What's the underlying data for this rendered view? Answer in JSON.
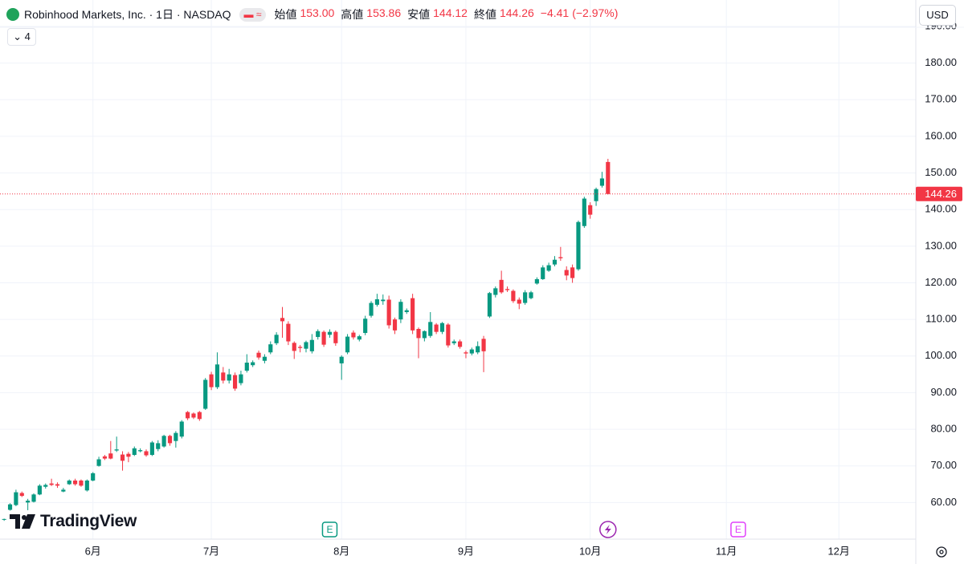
{
  "header": {
    "title": "Robinhood Markets, Inc. · 1日 · NASDAQ",
    "indicator_count": "4",
    "currency": "USD",
    "brand": "TradingView"
  },
  "chart_data": {
    "type": "candlestick",
    "up_color": "#089981",
    "down_color": "#f23645",
    "grid": true,
    "ohlc_legend": [
      {
        "name": "始値",
        "value": 153,
        "label": "153.00"
      },
      {
        "name": "高値",
        "value": 153.86,
        "label": "153.86"
      },
      {
        "name": "安値",
        "value": 144.12,
        "label": "144.12"
      },
      {
        "name": "終値",
        "value": 144.26,
        "label": "144.26"
      }
    ],
    "change": {
      "value": -4.41,
      "label": "−4.41"
    },
    "change_pct": {
      "value": -2.97,
      "label": "(−2.97%)"
    },
    "last_price": {
      "value": 144.26,
      "label": "144.26"
    },
    "open": [
      55.3,
      58,
      59.3,
      62.6,
      60,
      60.2,
      62.2,
      64.3,
      65.2,
      65,
      63,
      65,
      66,
      66,
      63.3,
      66,
      70,
      72.6,
      73.4,
      74.2,
      73.1,
      73.3,
      73,
      74,
      74,
      73,
      74.6,
      75.3,
      78.2,
      76.8,
      78,
      84.7,
      84.3,
      84.7,
      85.6,
      95,
      91.5,
      95.5,
      93.3,
      94.8,
      92.6,
      96,
      97.5,
      100.9,
      98.7,
      101,
      103.5,
      110.4,
      108.8,
      103.6,
      102.5,
      102,
      101.3,
      105.2,
      106.6,
      105.8,
      106.6,
      98,
      101,
      106.4,
      104.5,
      106.3,
      111,
      114,
      115,
      115.4,
      110,
      110,
      112,
      115.8,
      107.4,
      104.9,
      105.5,
      108.6,
      106.6,
      108.6,
      103.5,
      104,
      101,
      100.7,
      101,
      104.7,
      110.8,
      116.7,
      120.8,
      118.3,
      117.8,
      115.4,
      114.5,
      115.8,
      119.8,
      121,
      123.3,
      125,
      127,
      123.5,
      124.2,
      123.7,
      135.5,
      141.2,
      142.3,
      146.5,
      153
    ],
    "high": [
      55.6,
      59.8,
      63.5,
      63,
      61,
      62.5,
      65,
      65.2,
      66.5,
      65.5,
      64,
      66.3,
      66.5,
      66.3,
      66.3,
      68.3,
      72.5,
      73,
      76.8,
      78,
      74,
      73.8,
      75.3,
      74.8,
      74.5,
      76.8,
      77,
      78.5,
      78.5,
      79.5,
      82.5,
      85,
      84.6,
      85,
      94,
      95.7,
      101,
      97,
      96.5,
      95.5,
      96,
      100.5,
      98.8,
      101.5,
      100.5,
      104,
      106.5,
      113.4,
      109.5,
      104,
      103,
      104.2,
      106,
      107.3,
      107,
      107.3,
      107,
      100.2,
      106,
      107,
      105.8,
      111,
      115,
      117,
      116.8,
      116.5,
      110.5,
      115.5,
      113,
      117,
      107.8,
      107,
      112,
      109,
      109.3,
      109,
      104.5,
      104.5,
      101.5,
      102.3,
      104,
      105.5,
      117.5,
      119,
      123.3,
      119,
      118.2,
      116,
      118,
      117.8,
      121.5,
      124.8,
      125.5,
      127.3,
      129.8,
      124.5,
      125,
      137,
      143.5,
      142,
      146,
      150.3,
      153.86
    ],
    "low": [
      55,
      57.8,
      59,
      61.5,
      57.9,
      60,
      62,
      63.8,
      64.5,
      64,
      62.8,
      64.8,
      64.6,
      64.3,
      63,
      65.8,
      69.8,
      71.6,
      71.8,
      73.8,
      68.7,
      71,
      72.7,
      73.7,
      72.5,
      72.7,
      74,
      75,
      75.5,
      75,
      77.5,
      82.5,
      82.8,
      82.3,
      85.3,
      90.7,
      91,
      92.5,
      92.5,
      90.5,
      92,
      95.5,
      97,
      99,
      98,
      100.5,
      103,
      105,
      103,
      99.2,
      101,
      101,
      100.7,
      104.5,
      102.5,
      105,
      102.8,
      93.5,
      100.5,
      104.5,
      104,
      105.7,
      110.5,
      113.5,
      114,
      107.5,
      106,
      109,
      111.5,
      106,
      99.4,
      104,
      105,
      106,
      106,
      102.3,
      103,
      102,
      99.4,
      100.2,
      100.5,
      95.6,
      110.4,
      116,
      117,
      117.5,
      114.5,
      112.8,
      114,
      115.5,
      119.5,
      120.8,
      123,
      124.5,
      126,
      120.7,
      120,
      123.3,
      135,
      137.5,
      141,
      146,
      144.12
    ],
    "close": [
      55.5,
      59.5,
      62.8,
      61.8,
      60.5,
      62.2,
      64.6,
      64.8,
      64.8,
      64.6,
      63.5,
      66,
      65,
      64.6,
      66,
      68,
      71.8,
      72,
      72,
      74.5,
      71.4,
      72.5,
      74.8,
      74.3,
      72.9,
      76.4,
      76.2,
      78.2,
      76.2,
      79,
      82.1,
      83,
      83.2,
      82.8,
      93.5,
      91.5,
      97.7,
      93.3,
      95,
      91.1,
      95,
      98.2,
      98.3,
      99.6,
      99.8,
      103.2,
      105.8,
      109.5,
      104,
      101.4,
      102.2,
      103.8,
      104.4,
      106.8,
      103.1,
      106.6,
      103.5,
      99.8,
      105.3,
      105.1,
      105.4,
      110.2,
      114.5,
      115.5,
      115.4,
      108.4,
      107,
      114.8,
      112.5,
      107,
      104.9,
      106.8,
      109.3,
      106.6,
      109,
      102.9,
      104,
      102.5,
      100.7,
      101.8,
      102.7,
      101.3,
      117.2,
      118.5,
      117.4,
      118,
      115,
      114.3,
      117.4,
      117.4,
      121,
      124.2,
      124.8,
      126.3,
      126.7,
      122,
      121.3,
      136.6,
      143,
      138.6,
      145.6,
      148.5,
      144.26
    ],
    "xlim": [
      -0.7,
      154
    ],
    "xticks": [
      {
        "value": 15,
        "label": "6月"
      },
      {
        "value": 35,
        "label": "7月"
      },
      {
        "value": 57,
        "label": "8月"
      },
      {
        "value": 78,
        "label": "9月"
      },
      {
        "value": 99,
        "label": "10月"
      },
      {
        "value": 122,
        "label": "11月"
      },
      {
        "value": 141,
        "label": "12月"
      }
    ],
    "ylim": [
      50,
      190
    ],
    "yticks": [
      {
        "value": 60,
        "label": "60.00"
      },
      {
        "value": 70,
        "label": "70.00"
      },
      {
        "value": 80,
        "label": "80.00"
      },
      {
        "value": 90,
        "label": "90.00"
      },
      {
        "value": 100,
        "label": "100.00"
      },
      {
        "value": 110,
        "label": "110.00"
      },
      {
        "value": 120,
        "label": "120.00"
      },
      {
        "value": 130,
        "label": "130.00"
      },
      {
        "value": 140,
        "label": "140.00"
      },
      {
        "value": 150,
        "label": "150.00"
      },
      {
        "value": 160,
        "label": "160.00"
      },
      {
        "value": 170,
        "label": "170.00"
      },
      {
        "value": 180,
        "label": "180.00"
      },
      {
        "value": 190,
        "label": "190.00"
      }
    ],
    "events": [
      {
        "x": 55,
        "label": "E",
        "color": "#089981"
      },
      {
        "x": 102,
        "color": "#9c27b0"
      },
      {
        "x": 124,
        "label": "E",
        "color": "#e040fb"
      }
    ]
  }
}
